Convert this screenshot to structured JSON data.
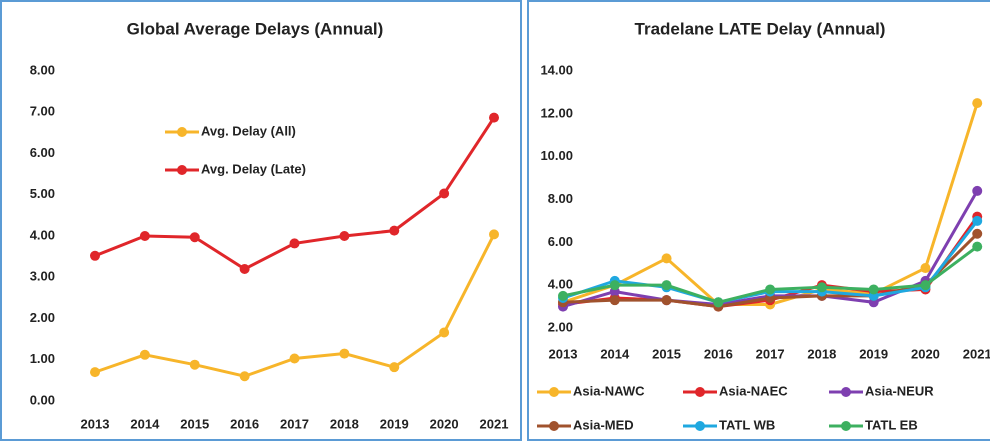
{
  "chart_data": [
    {
      "type": "line",
      "title": "Global Average Delays (Annual)",
      "categories": [
        "2013",
        "2014",
        "2015",
        "2016",
        "2017",
        "2018",
        "2019",
        "2020",
        "2021"
      ],
      "series": [
        {
          "name": "Avg. Delay (All)",
          "color": "#f7b52a",
          "values": [
            0.7,
            1.12,
            0.88,
            0.6,
            1.03,
            1.15,
            0.82,
            1.66,
            4.04
          ]
        },
        {
          "name": "Avg. Delay (Late)",
          "color": "#e0262a",
          "values": [
            3.52,
            4.0,
            3.97,
            3.2,
            3.82,
            4.0,
            4.13,
            5.03,
            6.87
          ]
        }
      ],
      "ylim": [
        0,
        8
      ],
      "yticks": [
        {
          "value": 0,
          "label": "0.00"
        },
        {
          "value": 1,
          "label": "1.00"
        },
        {
          "value": 2,
          "label": "2.00"
        },
        {
          "value": 3,
          "label": "3.00"
        },
        {
          "value": 4,
          "label": "4.00"
        },
        {
          "value": 5,
          "label": "5.00"
        },
        {
          "value": 6,
          "label": "6.00"
        },
        {
          "value": 7,
          "label": "7.00"
        },
        {
          "value": 8,
          "label": "8.00"
        }
      ],
      "grid": false,
      "legend": "inside-top"
    },
    {
      "type": "line",
      "title": "Tradelane LATE Delay (Annual)",
      "categories": [
        "2013",
        "2014",
        "2015",
        "2016",
        "2017",
        "2018",
        "2019",
        "2020",
        "2021"
      ],
      "series": [
        {
          "name": "Asia-NAWC",
          "color": "#f7b52a",
          "values": [
            3.2,
            4.0,
            5.25,
            3.1,
            3.1,
            3.8,
            3.6,
            4.8,
            12.5
          ]
        },
        {
          "name": "Asia-NAEC",
          "color": "#e0262a",
          "values": [
            3.1,
            3.4,
            3.3,
            3.0,
            3.3,
            4.0,
            3.7,
            3.8,
            7.2
          ]
        },
        {
          "name": "Asia-NEUR",
          "color": "#7e3fb0",
          "values": [
            3.0,
            3.7,
            3.3,
            3.1,
            3.5,
            3.5,
            3.2,
            4.2,
            8.4
          ]
        },
        {
          "name": "Asia-MED",
          "color": "#a0522d",
          "values": [
            3.2,
            3.3,
            3.3,
            3.0,
            3.4,
            3.5,
            3.5,
            4.0,
            6.4
          ]
        },
        {
          "name": "TATL WB",
          "color": "#1fa8e0",
          "values": [
            3.4,
            4.2,
            3.9,
            3.2,
            3.7,
            3.7,
            3.5,
            3.9,
            7.0
          ]
        },
        {
          "name": "TATL EB",
          "color": "#3db060",
          "values": [
            3.5,
            4.0,
            4.0,
            3.2,
            3.8,
            3.9,
            3.8,
            4.0,
            5.8
          ]
        }
      ],
      "ylim": [
        2,
        14
      ],
      "yticks": [
        {
          "value": 2,
          "label": "2.00"
        },
        {
          "value": 4,
          "label": "4.00"
        },
        {
          "value": 6,
          "label": "6.00"
        },
        {
          "value": 8,
          "label": "8.00"
        },
        {
          "value": 10,
          "label": "10.00"
        },
        {
          "value": 12,
          "label": "12.00"
        },
        {
          "value": 14,
          "label": "14.00"
        }
      ],
      "grid": false,
      "legend": "bottom"
    }
  ]
}
